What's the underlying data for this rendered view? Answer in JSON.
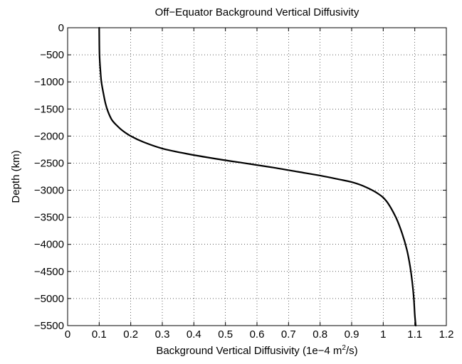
{
  "chart_data": {
    "type": "line",
    "title": "Off−Equator Background Vertical Diffusivity",
    "xlabel": "Background Vertical Diffusivity (1e−4 m",
    "xlabel_sup": "2",
    "xlabel_suffix": "/s)",
    "ylabel": "Depth (km)",
    "xlim": [
      0,
      1.2
    ],
    "ylim": [
      -5500,
      0
    ],
    "x_ticks": [
      0,
      0.1,
      0.2,
      0.3,
      0.4,
      0.5,
      0.6,
      0.7,
      0.8,
      0.9,
      1,
      1.1,
      1.2
    ],
    "x_tick_labels": [
      "0",
      "0.1",
      "0.2",
      "0.3",
      "0.4",
      "0.5",
      "0.6",
      "0.7",
      "0.8",
      "0.9",
      "1",
      "1.1",
      "1.2"
    ],
    "y_ticks": [
      0,
      -500,
      -1000,
      -1500,
      -2000,
      -2500,
      -3000,
      -3500,
      -4000,
      -4500,
      -5000,
      -5500
    ],
    "y_tick_labels": [
      "0",
      "−500",
      "−1000",
      "−1500",
      "−2000",
      "−2500",
      "−3000",
      "−3500",
      "−4000",
      "−4500",
      "−5000",
      "−5500"
    ],
    "grid": true,
    "line_color": "#000000",
    "series": [
      {
        "x": [
          0.1,
          0.101,
          0.104,
          0.107,
          0.113,
          0.12,
          0.128,
          0.14,
          0.155,
          0.174,
          0.2,
          0.24,
          0.3,
          0.38,
          0.47,
          0.56,
          0.65,
          0.73,
          0.8,
          0.86,
          0.9,
          0.94,
          0.98,
          1.01,
          1.04,
          1.06,
          1.075,
          1.085,
          1.092,
          1.097,
          1.1,
          1.103
        ],
        "y": [
          0,
          -500,
          -800,
          -1000,
          -1200,
          -1400,
          -1550,
          -1700,
          -1800,
          -1900,
          -2000,
          -2110,
          -2230,
          -2330,
          -2420,
          -2500,
          -2580,
          -2660,
          -2730,
          -2800,
          -2850,
          -2930,
          -3050,
          -3200,
          -3500,
          -3800,
          -4100,
          -4400,
          -4700,
          -5000,
          -5300,
          -5500
        ]
      }
    ]
  }
}
